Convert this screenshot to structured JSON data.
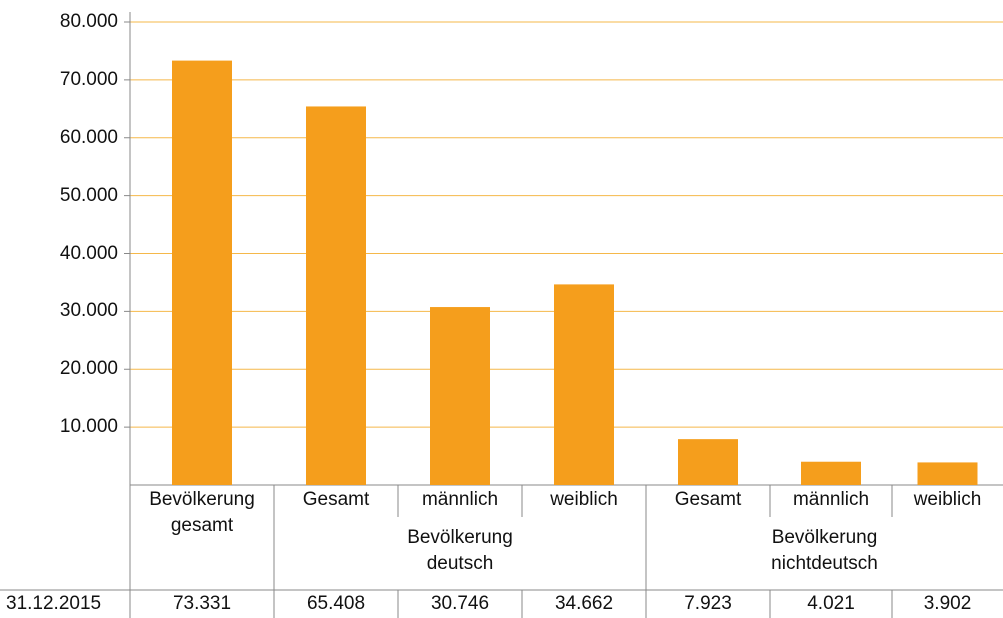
{
  "chart_data": {
    "type": "bar",
    "categories": [
      "Bevölkerung gesamt",
      "Gesamt",
      "männlich",
      "weiblich",
      "Gesamt",
      "männlich",
      "weiblich"
    ],
    "groups": [
      null,
      "Bevölkerung deutsch",
      "Bevölkerung deutsch",
      "Bevölkerung deutsch",
      "Bevölkerung nichtdeutsch",
      "Bevölkerung nichtdeutsch",
      "Bevölkerung nichtdeutsch"
    ],
    "series": [
      {
        "name": "31.12.2015",
        "color": "#f59e1c",
        "values": [
          73331,
          65408,
          30746,
          34662,
          7923,
          4021,
          3902
        ],
        "value_labels": [
          "73.331",
          "65.408",
          "30.746",
          "34.662",
          "7.923",
          "4.021",
          "3.902"
        ]
      }
    ],
    "ylim": [
      0,
      80000
    ],
    "yticks": [
      {
        "value": 10000,
        "label": "10.000"
      },
      {
        "value": 20000,
        "label": "20.000"
      },
      {
        "value": 30000,
        "label": "30.000"
      },
      {
        "value": 40000,
        "label": "40.000"
      },
      {
        "value": 50000,
        "label": "50.000"
      },
      {
        "value": 60000,
        "label": "60.000"
      },
      {
        "value": 70000,
        "label": "70.000"
      },
      {
        "value": 80000,
        "label": "80.000"
      }
    ],
    "grid": true
  }
}
